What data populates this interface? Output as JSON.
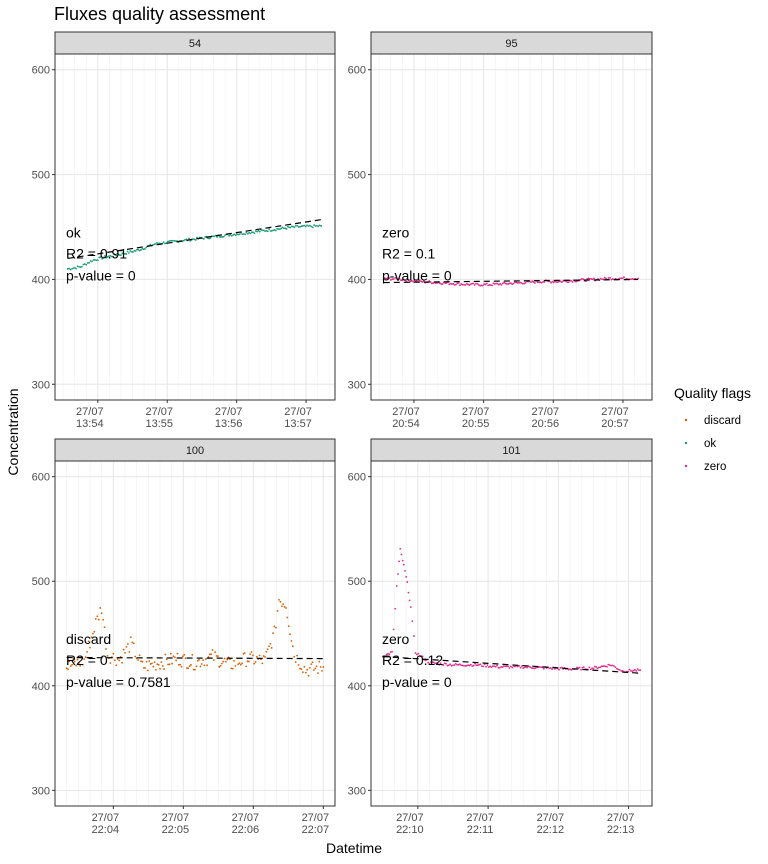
{
  "chart_data": {
    "type": "scatter",
    "title": "Fluxes quality assessment",
    "xlabel": "Datetime",
    "ylabel": "Concentration",
    "ylim": [
      285,
      615
    ],
    "yticks": [
      300,
      400,
      500,
      600
    ],
    "grid": true,
    "legend": {
      "title": "Quality flags",
      "position": "right",
      "entries": [
        {
          "name": "discard",
          "color": "#d95f02"
        },
        {
          "name": "ok",
          "color": "#1b9e77"
        },
        {
          "name": "zero",
          "color": "#e7298a"
        }
      ]
    },
    "panels": [
      {
        "strip": "54",
        "flag": "ok",
        "color": "#1b9e77",
        "annotation": {
          "flag": "ok",
          "r2": "R2 = 0.91",
          "pvalue": "p-value = 0"
        },
        "xlim": [
          "13:53:23",
          "13:57:25"
        ],
        "xticks": [
          {
            "time": "13:54:00",
            "date": "27/07",
            "clock": "13:54"
          },
          {
            "time": "13:55:00",
            "date": "27/07",
            "clock": "13:55"
          },
          {
            "time": "13:56:00",
            "date": "27/07",
            "clock": "13:56"
          },
          {
            "time": "13:57:00",
            "date": "27/07",
            "clock": "13:57"
          }
        ],
        "fit": {
          "start": [
            "13:53:34",
            420
          ],
          "end": [
            "13:57:13",
            457
          ]
        },
        "trace": [
          [
            "13:53:34",
            410
          ],
          [
            "13:53:45",
            412
          ],
          [
            "13:53:55",
            418
          ],
          [
            "13:54:05",
            421
          ],
          [
            "13:54:20",
            424
          ],
          [
            "13:54:35",
            428
          ],
          [
            "13:54:50",
            434
          ],
          [
            "13:55:05",
            436
          ],
          [
            "13:55:20",
            438
          ],
          [
            "13:55:35",
            440
          ],
          [
            "13:55:50",
            442
          ],
          [
            "13:56:05",
            444
          ],
          [
            "13:56:20",
            446
          ],
          [
            "13:56:35",
            448
          ],
          [
            "13:56:50",
            450
          ],
          [
            "13:57:13",
            451
          ]
        ]
      },
      {
        "strip": "95",
        "flag": "zero",
        "color": "#e7298a",
        "annotation": {
          "flag": "zero",
          "r2": "R2 = 0.1",
          "pvalue": "p-value = 0"
        },
        "xlim": [
          "20:53:23",
          "20:57:25"
        ],
        "xticks": [
          {
            "time": "20:54:00",
            "date": "27/07",
            "clock": "20:54"
          },
          {
            "time": "20:55:00",
            "date": "27/07",
            "clock": "20:55"
          },
          {
            "time": "20:56:00",
            "date": "27/07",
            "clock": "20:56"
          },
          {
            "time": "20:57:00",
            "date": "27/07",
            "clock": "20:57"
          }
        ],
        "fit": {
          "start": [
            "20:53:34",
            397
          ],
          "end": [
            "20:57:13",
            400
          ]
        },
        "trace": [
          [
            "20:53:34",
            401
          ],
          [
            "20:53:50",
            400
          ],
          [
            "20:54:05",
            398
          ],
          [
            "20:54:20",
            397
          ],
          [
            "20:54:35",
            396
          ],
          [
            "20:54:50",
            395
          ],
          [
            "20:55:05",
            395
          ],
          [
            "20:55:20",
            396
          ],
          [
            "20:55:35",
            397
          ],
          [
            "20:55:50",
            398
          ],
          [
            "20:56:05",
            398
          ],
          [
            "20:56:20",
            399
          ],
          [
            "20:56:35",
            400
          ],
          [
            "20:56:50",
            401
          ],
          [
            "20:57:13",
            401
          ]
        ]
      },
      {
        "strip": "100",
        "flag": "discard",
        "color": "#d95f02",
        "annotation": {
          "flag": "discard",
          "r2": "R2 = 0",
          "pvalue": "p-value = 0.7581"
        },
        "xlim": [
          "22:03:10",
          "22:07:10"
        ],
        "xticks": [
          {
            "time": "22:04:00",
            "date": "27/07",
            "clock": "22:04"
          },
          {
            "time": "22:05:00",
            "date": "27/07",
            "clock": "22:05"
          },
          {
            "time": "22:06:00",
            "date": "27/07",
            "clock": "22:06"
          },
          {
            "time": "22:07:00",
            "date": "27/07",
            "clock": "22:07"
          }
        ],
        "fit": {
          "start": [
            "22:03:20",
            427
          ],
          "end": [
            "22:07:00",
            426
          ]
        },
        "trace": [
          [
            "22:03:20",
            418
          ],
          [
            "22:03:35",
            424
          ],
          [
            "22:03:45",
            460
          ],
          [
            "22:03:50",
            475
          ],
          [
            "22:03:55",
            430
          ],
          [
            "22:04:05",
            425
          ],
          [
            "22:04:15",
            440
          ],
          [
            "22:04:25",
            418
          ],
          [
            "22:04:40",
            422
          ],
          [
            "22:04:55",
            426
          ],
          [
            "22:05:10",
            422
          ],
          [
            "22:05:25",
            428
          ],
          [
            "22:05:40",
            420
          ],
          [
            "22:05:55",
            426
          ],
          [
            "22:06:10",
            424
          ],
          [
            "22:06:18",
            450
          ],
          [
            "22:06:22",
            483
          ],
          [
            "22:06:28",
            478
          ],
          [
            "22:06:35",
            430
          ],
          [
            "22:06:45",
            415
          ],
          [
            "22:07:00",
            418
          ]
        ]
      },
      {
        "strip": "101",
        "flag": "zero",
        "color": "#e7298a",
        "annotation": {
          "flag": "zero",
          "r2": "R2 = 0.12",
          "pvalue": "p-value = 0"
        },
        "xlim": [
          "22:09:20",
          "22:13:20"
        ],
        "xticks": [
          {
            "time": "22:10:00",
            "date": "27/07",
            "clock": "22:10"
          },
          {
            "time": "22:11:00",
            "date": "27/07",
            "clock": "22:11"
          },
          {
            "time": "22:12:00",
            "date": "27/07",
            "clock": "22:12"
          },
          {
            "time": "22:13:00",
            "date": "27/07",
            "clock": "22:13"
          }
        ],
        "fit": {
          "start": [
            "22:09:30",
            428
          ],
          "end": [
            "22:13:10",
            412
          ]
        },
        "trace": [
          [
            "22:09:30",
            428
          ],
          [
            "22:09:38",
            432
          ],
          [
            "22:09:42",
            495
          ],
          [
            "22:09:45",
            530
          ],
          [
            "22:09:48",
            515
          ],
          [
            "22:09:51",
            498
          ],
          [
            "22:09:54",
            475
          ],
          [
            "22:09:58",
            432
          ],
          [
            "22:10:10",
            422
          ],
          [
            "22:10:30",
            420
          ],
          [
            "22:10:50",
            420
          ],
          [
            "22:11:10",
            418
          ],
          [
            "22:11:30",
            418
          ],
          [
            "22:11:50",
            417
          ],
          [
            "22:12:10",
            416
          ],
          [
            "22:12:30",
            417
          ],
          [
            "22:12:45",
            420
          ],
          [
            "22:12:55",
            414
          ],
          [
            "22:13:10",
            415
          ]
        ]
      }
    ]
  }
}
